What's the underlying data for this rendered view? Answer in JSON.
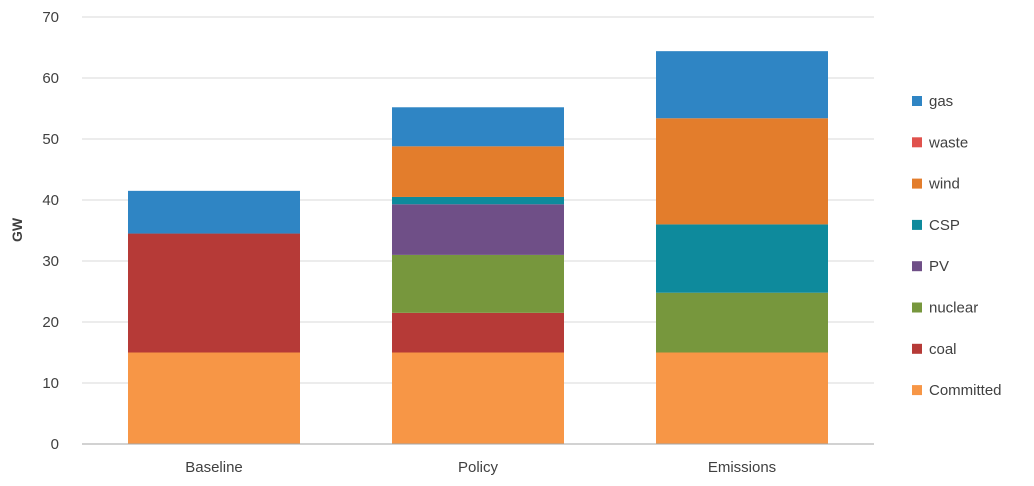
{
  "chart_data": {
    "type": "bar",
    "stacked": true,
    "ylabel": "GW",
    "xlabel": "",
    "ylim": [
      0,
      70
    ],
    "yticks": [
      0,
      10,
      20,
      30,
      40,
      50,
      60,
      70
    ],
    "grid": true,
    "legend_position": "right",
    "categories": [
      "Baseline",
      "Policy",
      "Emissions"
    ],
    "series": [
      {
        "name": "Committed",
        "color": "#f79646",
        "values": [
          15,
          15,
          15
        ]
      },
      {
        "name": "coal",
        "color": "#b63a37",
        "values": [
          19.5,
          6.5,
          0
        ]
      },
      {
        "name": "nuclear",
        "color": "#77973d",
        "values": [
          0,
          9.5,
          9.8
        ]
      },
      {
        "name": "PV",
        "color": "#6f4f87",
        "values": [
          0,
          8.3,
          0
        ]
      },
      {
        "name": "CSP",
        "color": "#0e8a9c",
        "values": [
          0,
          1.2,
          11.2
        ]
      },
      {
        "name": "wind",
        "color": "#e37d2c",
        "values": [
          0,
          8.3,
          17.4
        ]
      },
      {
        "name": "waste",
        "color": "#e0524d",
        "values": [
          0,
          0,
          0
        ]
      },
      {
        "name": "gas",
        "color": "#2f85c4",
        "values": [
          7,
          6.4,
          11
        ]
      }
    ]
  }
}
